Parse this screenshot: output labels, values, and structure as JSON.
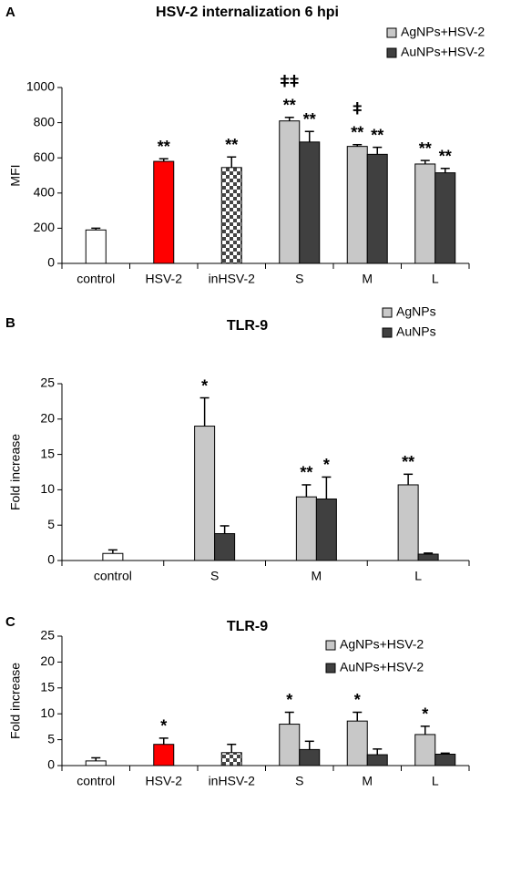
{
  "chart_data": [
    {
      "type": "bar",
      "panel": "A",
      "title": "HSV-2 internalization 6 hpi",
      "ylabel": "MFI",
      "categories": [
        "control",
        "HSV-2",
        "inHSV-2",
        "S",
        "M",
        "L"
      ],
      "values": [
        190,
        580,
        545,
        null,
        null,
        null
      ],
      "errors": [
        10,
        15,
        60,
        null,
        null,
        null
      ],
      "fills": [
        "#ffffff",
        "#ff0000",
        "checkered",
        null,
        null,
        null
      ],
      "significance": [
        null,
        "**",
        "**",
        null,
        null,
        null
      ],
      "series": [
        {
          "name": "AgNPs+HSV-2",
          "color": "#c8c8c8",
          "values": [
            null,
            null,
            null,
            810,
            665,
            565
          ],
          "errors": [
            null,
            null,
            null,
            20,
            10,
            20
          ],
          "significance": [
            null,
            null,
            null,
            "**",
            "**",
            "**"
          ],
          "significance_2": [
            null,
            null,
            null,
            "ǂǂ",
            "ǂ",
            null
          ]
        },
        {
          "name": "AuNPs+HSV-2",
          "color": "#404040",
          "values": [
            null,
            null,
            null,
            690,
            620,
            515
          ],
          "errors": [
            null,
            null,
            null,
            60,
            40,
            25
          ],
          "significance": [
            null,
            null,
            null,
            "**",
            "**",
            "**"
          ]
        }
      ],
      "ylim": [
        0,
        1000
      ],
      "yticks": [
        0,
        200,
        400,
        600,
        800,
        1000
      ],
      "legend": "upper right"
    },
    {
      "type": "bar",
      "panel": "B",
      "title": "TLR-9",
      "ylabel": "Fold increase",
      "categories": [
        "control",
        "S",
        "M",
        "L"
      ],
      "values": [
        1,
        null,
        null,
        null
      ],
      "errors": [
        0.5,
        null,
        null,
        null
      ],
      "fills": [
        "#ffffff",
        null,
        null,
        null
      ],
      "series": [
        {
          "name": "AgNPs",
          "color": "#c8c8c8",
          "values": [
            null,
            19,
            9,
            10.7
          ],
          "errors": [
            null,
            4,
            1.7,
            1.5
          ],
          "significance": [
            null,
            "*",
            "**",
            "**"
          ]
        },
        {
          "name": "AuNPs",
          "color": "#404040",
          "values": [
            null,
            3.8,
            8.7,
            0.9
          ],
          "errors": [
            null,
            1.1,
            3.1,
            0.15
          ],
          "significance": [
            null,
            null,
            "*",
            null
          ]
        }
      ],
      "ylim": [
        0,
        25
      ],
      "yticks": [
        0,
        5,
        10,
        15,
        20,
        25
      ],
      "legend": "upper right"
    },
    {
      "type": "bar",
      "panel": "C",
      "title": "TLR-9",
      "ylabel": "Fold increase",
      "categories": [
        "control",
        "HSV-2",
        "inHSV-2",
        "S",
        "M",
        "L"
      ],
      "values": [
        0.9,
        4.1,
        2.5,
        null,
        null,
        null
      ],
      "errors": [
        0.6,
        1.2,
        1.6,
        null,
        null,
        null
      ],
      "fills": [
        "#ffffff",
        "#ff0000",
        "checkered",
        null,
        null,
        null
      ],
      "significance": [
        null,
        "*",
        null,
        null,
        null,
        null
      ],
      "series": [
        {
          "name": "AgNPs+HSV-2",
          "color": "#c8c8c8",
          "values": [
            null,
            null,
            null,
            8,
            8.6,
            6
          ],
          "errors": [
            null,
            null,
            null,
            2.3,
            1.7,
            1.6
          ],
          "significance": [
            null,
            null,
            null,
            "*",
            "*",
            "*"
          ]
        },
        {
          "name": "AuNPs+HSV-2",
          "color": "#404040",
          "values": [
            null,
            null,
            null,
            3.1,
            2.1,
            2.2
          ],
          "errors": [
            null,
            null,
            null,
            1.6,
            1.1,
            0.2
          ]
        }
      ],
      "ylim": [
        0,
        25
      ],
      "yticks": [
        0,
        5,
        10,
        15,
        20,
        25
      ],
      "legend": "upper right"
    }
  ]
}
